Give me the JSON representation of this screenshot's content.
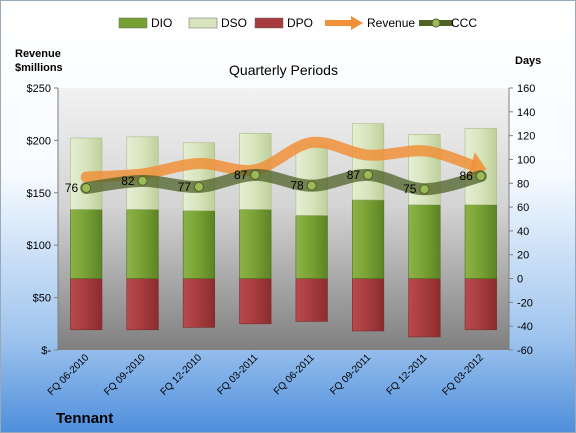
{
  "company": "Tennant",
  "chart_data": {
    "type": "bar",
    "title": "Quarterly Periods",
    "left_axis_label_line1": "Revenue",
    "left_axis_label_line2": "$millions",
    "right_axis_label": "Days",
    "categories": [
      "FQ 06-2010",
      "FQ 09-2010",
      "FQ 12-2010",
      "FQ 03-2011",
      "FQ 06-2011",
      "FQ 09-2011",
      "FQ 12-2011",
      "FQ 03-2012"
    ],
    "left_axis": {
      "min": 0,
      "max": 250,
      "ticks": [
        0,
        50,
        100,
        150,
        200,
        250
      ],
      "tick_labels": [
        "$-",
        "$50",
        "$100",
        "$150",
        "$200",
        "$250"
      ]
    },
    "right_axis": {
      "min": -60,
      "max": 160,
      "ticks": [
        -60,
        -40,
        -20,
        0,
        20,
        40,
        60,
        80,
        100,
        120,
        140,
        160
      ]
    },
    "legend": {
      "placement": "top",
      "entries": [
        {
          "name": "DIO",
          "color": "#77a033"
        },
        {
          "name": "DSO",
          "color": "#d7e4bd"
        },
        {
          "name": "DPO",
          "color": "#a63b3e"
        },
        {
          "name": "Revenue",
          "color": "#f0913a"
        },
        {
          "name": "CCC",
          "color": "#4f6228"
        }
      ]
    },
    "series": [
      {
        "name": "DIO",
        "axis": "days",
        "values": [
          58,
          58,
          57,
          58,
          53,
          66,
          62,
          62
        ]
      },
      {
        "name": "DSO",
        "axis": "days",
        "values": [
          60,
          61,
          57,
          64,
          59,
          64,
          59,
          64
        ]
      },
      {
        "name": "DPO",
        "axis": "days",
        "values": [
          -43,
          -43,
          -41,
          -38,
          -36,
          -44,
          -49,
          -43
        ]
      },
      {
        "name": "Revenue",
        "axis": "revenue",
        "values": [
          165,
          168,
          178,
          172,
          198,
          186,
          190,
          174
        ]
      },
      {
        "name": "CCC",
        "axis": "days",
        "values": [
          76,
          82,
          77,
          87,
          78,
          87,
          75,
          86
        ]
      }
    ],
    "ccc_labels": [
      "76",
      "82",
      "77",
      "87",
      "78",
      "87",
      "75",
      "86"
    ],
    "grid": false
  }
}
